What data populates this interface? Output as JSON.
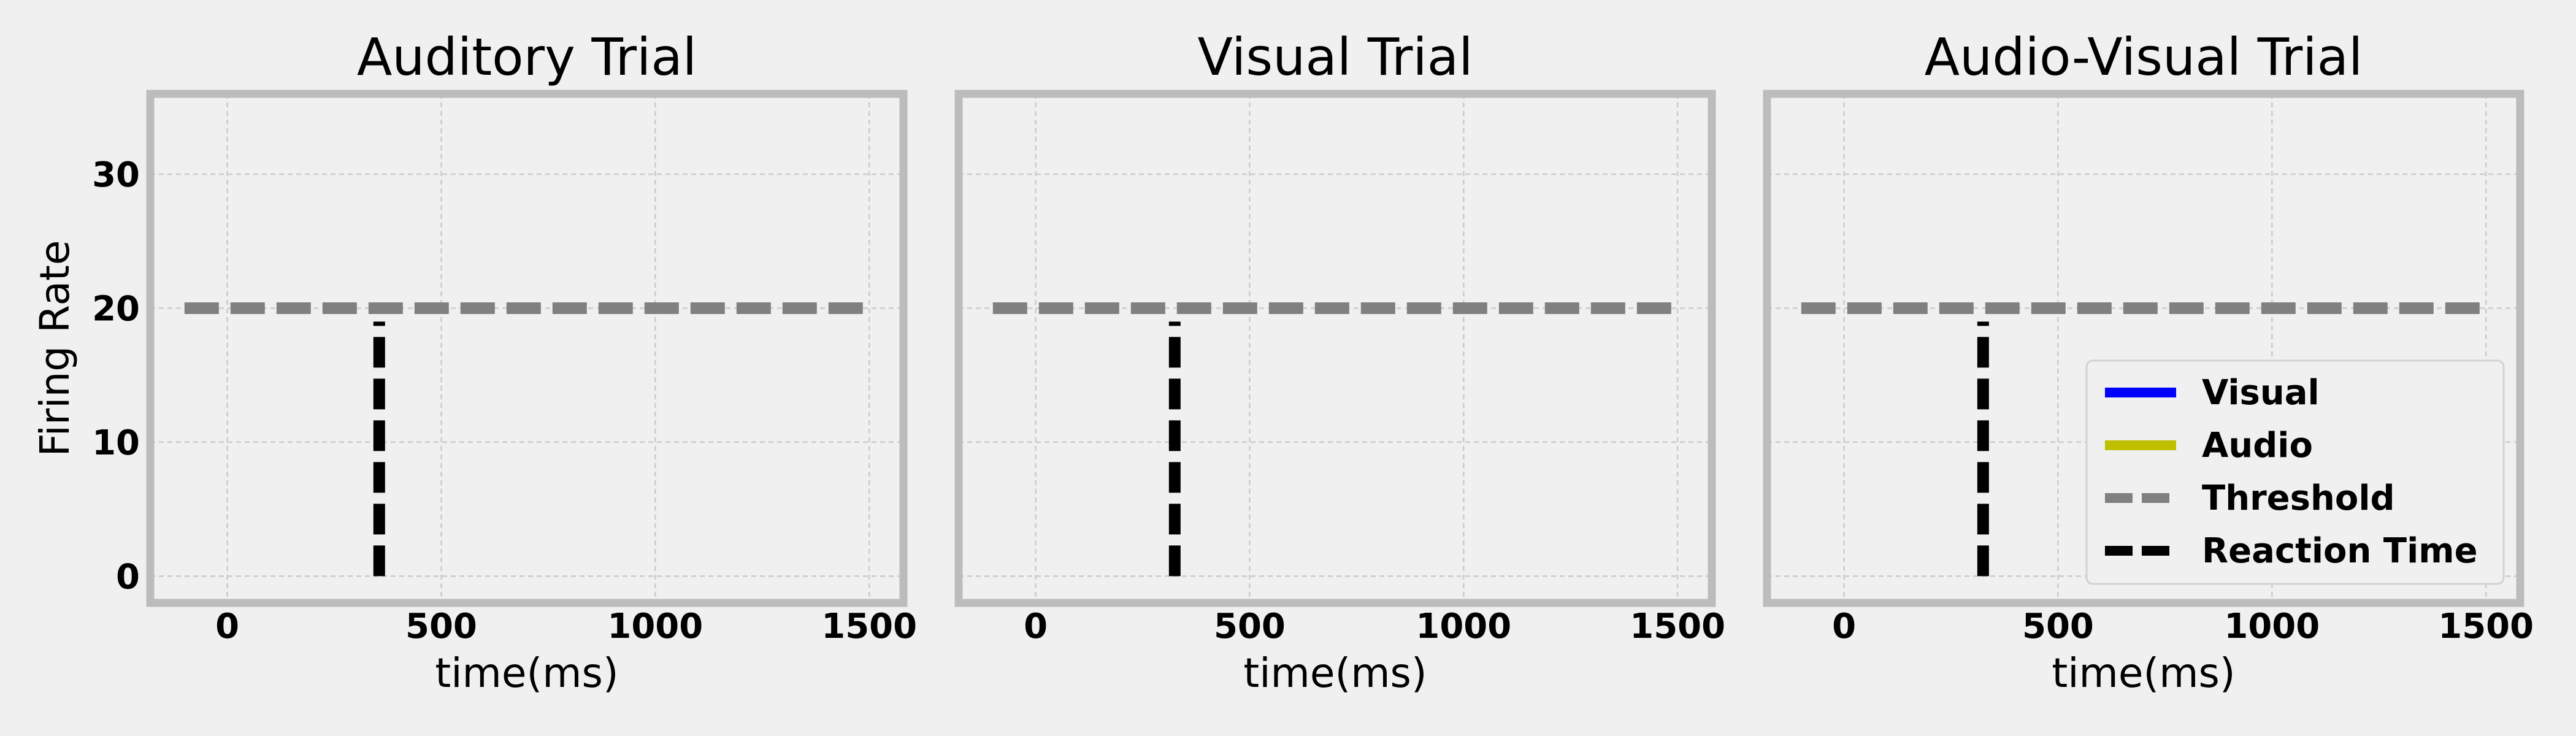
{
  "chart_data": [
    {
      "type": "line",
      "title": "Auditory Trial",
      "xlabel": "time(ms)",
      "ylabel": "Firing Rate",
      "xlim": [
        -180,
        1580
      ],
      "ylim": [
        -2,
        36
      ],
      "xticks": [
        0,
        500,
        1000,
        1500
      ],
      "yticks": [
        0,
        10,
        20,
        30
      ],
      "grid": true,
      "series": [
        {
          "name": "Threshold",
          "style": "dashed",
          "color": "#808080",
          "x": [
            -100,
            1500
          ],
          "y": [
            20,
            20
          ]
        },
        {
          "name": "Reaction Time",
          "style": "dashed",
          "color": "#000000",
          "x": [
            355,
            355
          ],
          "y": [
            0,
            19
          ]
        }
      ]
    },
    {
      "type": "line",
      "title": "Visual Trial",
      "xlabel": "time(ms)",
      "ylabel": "",
      "xlim": [
        -180,
        1580
      ],
      "ylim": [
        -2,
        36
      ],
      "xticks": [
        0,
        500,
        1000,
        1500
      ],
      "yticks": [
        0,
        10,
        20,
        30
      ],
      "grid": true,
      "series": [
        {
          "name": "Threshold",
          "style": "dashed",
          "color": "#808080",
          "x": [
            -100,
            1500
          ],
          "y": [
            20,
            20
          ]
        },
        {
          "name": "Reaction Time",
          "style": "dashed",
          "color": "#000000",
          "x": [
            325,
            325
          ],
          "y": [
            0,
            19
          ]
        }
      ]
    },
    {
      "type": "line",
      "title": "Audio-Visual Trial",
      "xlabel": "time(ms)",
      "ylabel": "",
      "xlim": [
        -180,
        1580
      ],
      "ylim": [
        -2,
        36
      ],
      "xticks": [
        0,
        500,
        1000,
        1500
      ],
      "yticks": [
        0,
        10,
        20,
        30
      ],
      "grid": true,
      "legend_position": "lower-right",
      "series": [
        {
          "name": "Threshold",
          "style": "dashed",
          "color": "#808080",
          "x": [
            -100,
            1500
          ],
          "y": [
            20,
            20
          ]
        },
        {
          "name": "Reaction Time",
          "style": "dashed",
          "color": "#000000",
          "x": [
            325,
            325
          ],
          "y": [
            0,
            19
          ]
        }
      ],
      "legend": [
        {
          "label": "Visual",
          "color": "#0000ff",
          "style": "solid"
        },
        {
          "label": "Audio",
          "color": "#bfbf00",
          "style": "solid"
        },
        {
          "label": "Threshold",
          "color": "#808080",
          "style": "dashed"
        },
        {
          "label": "Reaction Time",
          "color": "#000000",
          "style": "dashed"
        }
      ]
    }
  ],
  "colors": {
    "background": "#f0f0f0",
    "frame": "#bcbcbc",
    "grid": "#cbcbcb"
  }
}
